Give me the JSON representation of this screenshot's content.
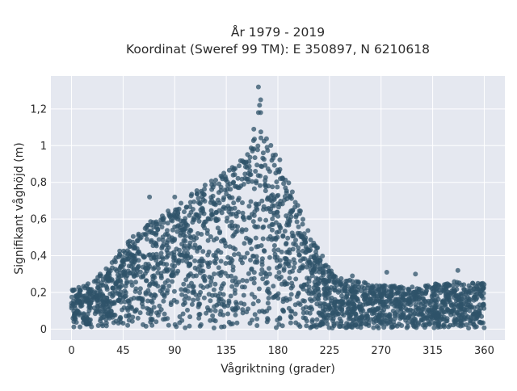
{
  "chart_data": {
    "type": "scatter",
    "title": "År 1979 - 2019",
    "subtitle": "Koordinat (Sweref 99 TM): E 350897, N 6210618",
    "xlabel": "Vågriktning (grader)",
    "ylabel": "Signifikant våghöjd (m)",
    "xlim": [
      -18,
      378
    ],
    "ylim": [
      -0.06,
      1.38
    ],
    "xticks": [
      0,
      45,
      90,
      135,
      180,
      225,
      270,
      315,
      360
    ],
    "xtick_labels": [
      "0",
      "45",
      "90",
      "135",
      "180",
      "225",
      "270",
      "315",
      "360"
    ],
    "yticks": [
      0,
      0.2,
      0.4,
      0.6,
      0.8,
      1.0,
      1.2
    ],
    "ytick_labels": [
      "0",
      "0,2",
      "0,4",
      "0,6",
      "0,8",
      "1",
      "1,2"
    ],
    "grid": true,
    "background": "#e5e8f0",
    "marker_color": "#2f5369",
    "envelope": {
      "x": [
        0,
        15,
        30,
        45,
        60,
        75,
        90,
        105,
        120,
        135,
        150,
        160,
        165,
        170,
        180,
        195,
        210,
        225,
        240,
        270,
        300,
        330,
        360
      ],
      "y_max": [
        0.22,
        0.25,
        0.33,
        0.45,
        0.55,
        0.62,
        0.66,
        0.74,
        0.8,
        0.86,
        0.95,
        1.05,
        1.1,
        1.05,
        0.95,
        0.72,
        0.5,
        0.33,
        0.27,
        0.24,
        0.23,
        0.26,
        0.25
      ]
    },
    "outliers": [
      {
        "x": 163,
        "y": 1.32
      },
      {
        "x": 165,
        "y": 1.25
      },
      {
        "x": 164,
        "y": 1.22
      },
      {
        "x": 165,
        "y": 1.18
      },
      {
        "x": 163,
        "y": 1.18
      },
      {
        "x": 159,
        "y": 1.09
      },
      {
        "x": 68,
        "y": 0.72
      },
      {
        "x": 90,
        "y": 0.72
      },
      {
        "x": 337,
        "y": 0.32
      },
      {
        "x": 275,
        "y": 0.31
      },
      {
        "x": 300,
        "y": 0.3
      },
      {
        "x": 350,
        "y": 0.25
      },
      {
        "x": 245,
        "y": 0.29
      },
      {
        "x": 25,
        "y": 0.3
      }
    ]
  }
}
